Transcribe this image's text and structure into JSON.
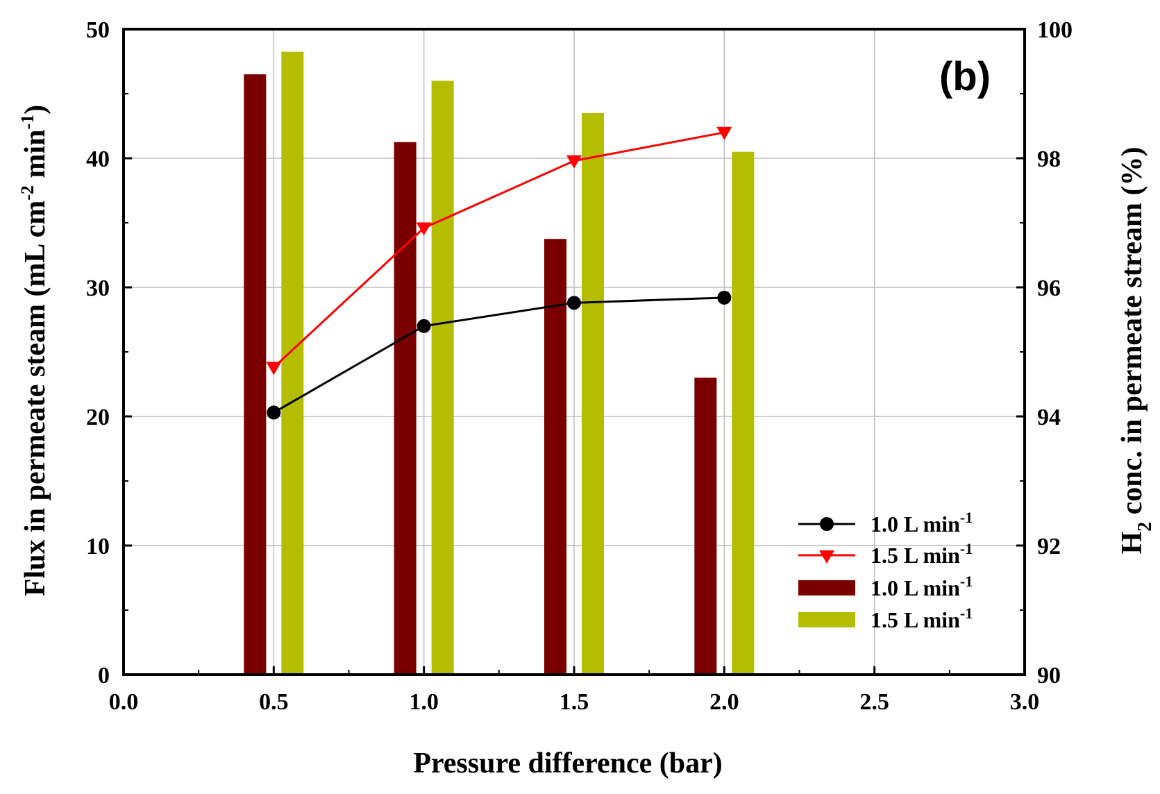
{
  "chart_data": {
    "type": "bar+line",
    "panel_label": "(b)",
    "x": {
      "label": "Pressure difference (bar)",
      "range": [
        0.0,
        3.0
      ],
      "ticks": [
        "0.0",
        "0.5",
        "1.0",
        "1.5",
        "2.0",
        "2.5",
        "3.0"
      ]
    },
    "y_left": {
      "label_main": "Flux in permeate steam (mL cm",
      "label_sup1": "-2",
      "label_mid": " min",
      "label_sup2": "-1",
      "label_end": ")",
      "range": [
        0,
        50
      ],
      "ticks": [
        "0",
        "10",
        "20",
        "30",
        "40",
        "50"
      ]
    },
    "y_right": {
      "label_h": "H",
      "label_sub": "2",
      "label_rest": " conc. in permeate stream (%)",
      "range": [
        90,
        100
      ],
      "ticks": [
        "90",
        "92",
        "94",
        "96",
        "98",
        "100"
      ]
    },
    "grid": true,
    "legend_position": "bottom-right",
    "line_series": [
      {
        "name": "1.0 L min",
        "sup": "-1",
        "axis": "left",
        "color": "#000000",
        "marker": "circle",
        "x": [
          0.5,
          1.0,
          1.5,
          2.0
        ],
        "y": [
          20.3,
          27.0,
          28.8,
          29.2
        ]
      },
      {
        "name": "1.5 L min",
        "sup": "-1",
        "axis": "left",
        "color": "#ff0000",
        "marker": "triangle-down",
        "x": [
          0.5,
          1.0,
          1.5,
          2.0
        ],
        "y": [
          23.8,
          34.6,
          39.8,
          42.0
        ]
      }
    ],
    "bar_series": [
      {
        "name": "1.0 L min",
        "sup": "-1",
        "axis": "right",
        "color": "#7a0000",
        "x": [
          0.5,
          1.0,
          1.5,
          2.0
        ],
        "y": [
          99.3,
          98.25,
          96.75,
          94.6
        ]
      },
      {
        "name": "1.5 L min",
        "sup": "-1",
        "axis": "right",
        "color": "#b5bd00",
        "x": [
          0.5,
          1.0,
          1.5,
          2.0
        ],
        "y": [
          99.65,
          99.2,
          98.7,
          98.1
        ]
      }
    ]
  }
}
